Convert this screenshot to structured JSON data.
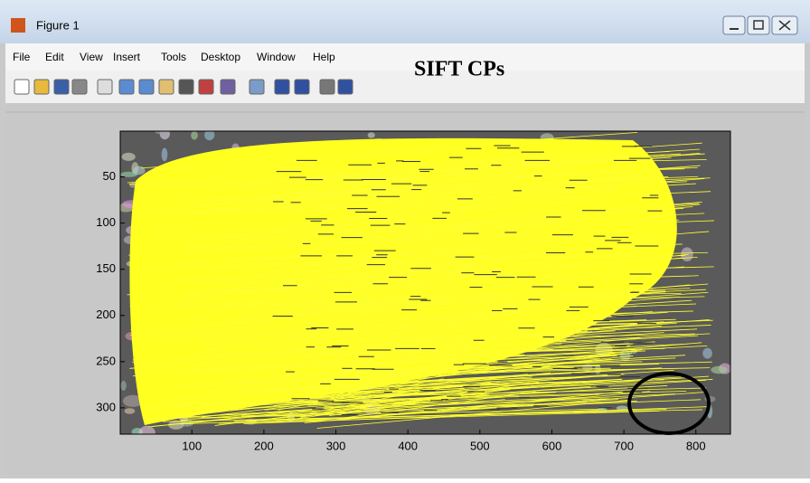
{
  "window": {
    "title": "Figure 1"
  },
  "menu": [
    "File",
    "Edit",
    "View",
    "Insert",
    "Tools",
    "Desktop",
    "Window",
    "Help"
  ],
  "annotation": "SIFT CPs",
  "axes": {
    "xlim": [
      0.5,
      848
    ],
    "ylim": [
      0.5,
      328.5
    ],
    "y_reversed": true,
    "xticks": [
      100,
      200,
      300,
      400,
      500,
      600,
      700,
      800
    ],
    "yticks": [
      50,
      100,
      150,
      200,
      250,
      300
    ]
  }
}
